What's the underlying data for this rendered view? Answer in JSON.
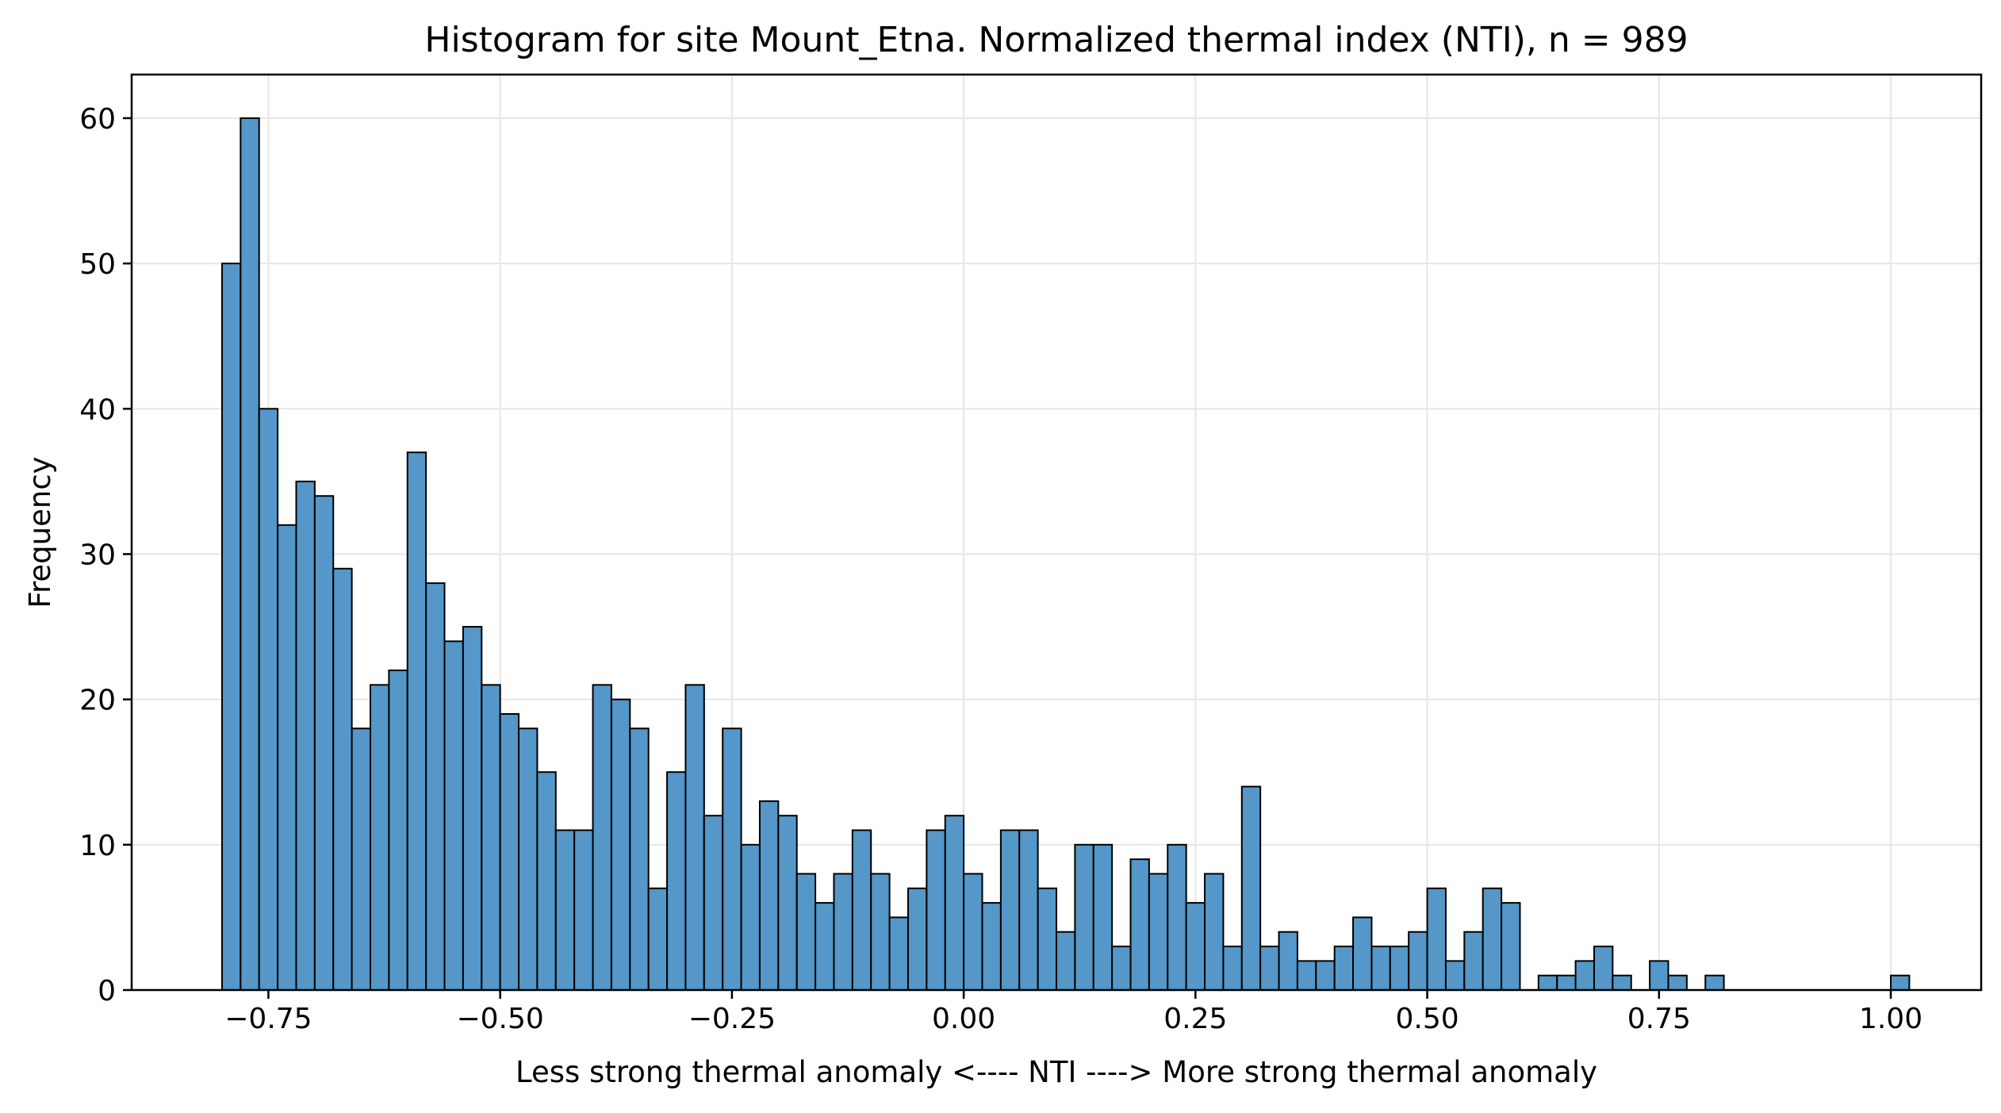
{
  "chart_data": {
    "type": "bar",
    "title": "Histogram for site Mount_Etna. Normalized thermal index (NTI), n = 989",
    "xlabel": "Less strong thermal anomaly <----  NTI  ----> More strong thermal anomaly",
    "ylabel": "Frequency",
    "xlim": [
      -0.8975,
      1.0975
    ],
    "ylim": [
      0,
      63
    ],
    "xticks": [
      -0.75,
      -0.5,
      -0.25,
      0.0,
      0.25,
      0.5,
      0.75,
      1.0
    ],
    "xtick_labels": [
      "−0.75",
      "−0.50",
      "−0.25",
      "0.00",
      "0.25",
      "0.50",
      "0.75",
      "1.00"
    ],
    "yticks": [
      0,
      10,
      20,
      30,
      40,
      50,
      60
    ],
    "ytick_labels": [
      "0",
      "10",
      "20",
      "30",
      "40",
      "50",
      "60"
    ],
    "grid": true,
    "bin_start": -0.8,
    "bin_width": 0.02,
    "values": [
      50,
      60,
      40,
      32,
      35,
      34,
      29,
      18,
      21,
      22,
      37,
      28,
      24,
      25,
      21,
      19,
      18,
      15,
      11,
      11,
      21,
      20,
      18,
      7,
      15,
      21,
      12,
      18,
      10,
      13,
      12,
      8,
      6,
      8,
      11,
      8,
      5,
      7,
      11,
      12,
      8,
      6,
      11,
      11,
      7,
      4,
      10,
      10,
      3,
      9,
      8,
      10,
      6,
      8,
      3,
      14,
      3,
      4,
      2,
      2,
      3,
      5,
      3,
      3,
      4,
      7,
      2,
      4,
      7,
      6,
      0,
      1,
      1,
      2,
      3,
      1,
      0,
      2,
      1,
      0,
      1,
      0,
      0,
      0,
      0,
      0,
      0,
      0,
      0,
      0,
      1
    ],
    "bar_color": "#5497c8",
    "edge_color": "#000000"
  }
}
